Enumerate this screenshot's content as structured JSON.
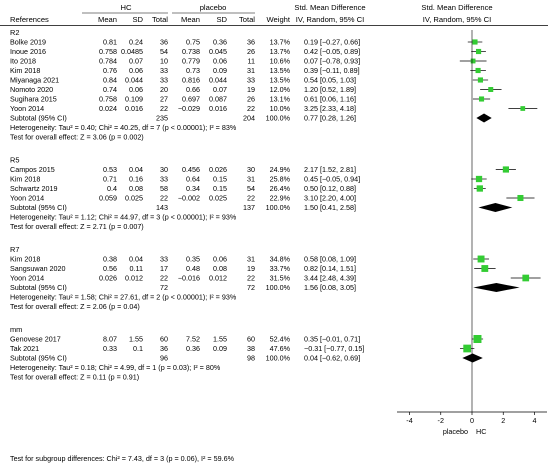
{
  "headers": {
    "group_hc": "HC",
    "group_placebo": "placebo",
    "smd_header": "Std. Mean Difference",
    "smd_header_right": "Std. Mean Difference",
    "references": "References",
    "mean": "Mean",
    "sd": "SD",
    "total": "Total",
    "weight": "Weight",
    "iv_ci": "IV, Random, 95% CI",
    "iv_ci_right": "IV, Random, 95% CI"
  },
  "axis": {
    "ticks": [
      "-4",
      "-2",
      "0",
      "2",
      "4"
    ],
    "tick_values": [
      -4,
      -2,
      0,
      2,
      4
    ],
    "xlim": [
      -4.8,
      4.8
    ],
    "label_left": "placebo",
    "label_right": "HC"
  },
  "colors": {
    "study_marker": "#33cc33",
    "diamond": "#000000",
    "line": "#000000"
  },
  "overall_test": "Test for subgroup differences: Chi² = 7.43, df = 3 (p = 0.06), I² = 59.6%",
  "chart_data": {
    "type": "forest",
    "x_range": [
      -4.8,
      4.8
    ],
    "groups": [
      {
        "name": "R2",
        "studies": [
          {
            "ref": "Bolke 2019",
            "hc_mean": "0.81",
            "hc_sd": "0.24",
            "hc_total": "36",
            "pl_mean": "0.75",
            "pl_sd": "0.36",
            "pl_total": "36",
            "weight": "13.7%",
            "ci": "0.19 [−0.27, 0.66]",
            "est": 0.19,
            "lo": -0.27,
            "hi": 0.66,
            "w": 13.7
          },
          {
            "ref": "Inoue 2016",
            "hc_mean": "0.758",
            "hc_sd": "0.0485",
            "hc_total": "54",
            "pl_mean": "0.738",
            "pl_sd": "0.045",
            "pl_total": "26",
            "weight": "13.7%",
            "ci": "0.42 [−0.05, 0.89]",
            "est": 0.42,
            "lo": -0.05,
            "hi": 0.89,
            "w": 13.7
          },
          {
            "ref": "Ito 2018",
            "hc_mean": "0.784",
            "hc_sd": "0.07",
            "hc_total": "10",
            "pl_mean": "0.779",
            "pl_sd": "0.06",
            "pl_total": "11",
            "weight": "10.6%",
            "ci": "0.07 [−0.78, 0.93]",
            "est": 0.07,
            "lo": -0.78,
            "hi": 0.93,
            "w": 10.6
          },
          {
            "ref": "Kim 2018",
            "hc_mean": "0.76",
            "hc_sd": "0.06",
            "hc_total": "33",
            "pl_mean": "0.73",
            "pl_sd": "0.09",
            "pl_total": "31",
            "weight": "13.5%",
            "ci": "0.39 [−0.11, 0.89]",
            "est": 0.39,
            "lo": -0.11,
            "hi": 0.89,
            "w": 13.5
          },
          {
            "ref": "Miyanaga 2021",
            "hc_mean": "0.84",
            "hc_sd": "0.044",
            "hc_total": "33",
            "pl_mean": "0.816",
            "pl_sd": "0.044",
            "pl_total": "33",
            "weight": "13.5%",
            "ci": "0.54 [0.05, 1.03]",
            "est": 0.54,
            "lo": 0.05,
            "hi": 1.03,
            "w": 13.5
          },
          {
            "ref": "Nomoto 2020",
            "hc_mean": "0.74",
            "hc_sd": "0.06",
            "hc_total": "20",
            "pl_mean": "0.66",
            "pl_sd": "0.07",
            "pl_total": "19",
            "weight": "12.0%",
            "ci": "1.20 [0.52, 1.89]",
            "est": 1.2,
            "lo": 0.52,
            "hi": 1.89,
            "w": 12.0
          },
          {
            "ref": "Sugihara 2015",
            "hc_mean": "0.758",
            "hc_sd": "0.109",
            "hc_total": "27",
            "pl_mean": "0.697",
            "pl_sd": "0.087",
            "pl_total": "26",
            "weight": "13.1%",
            "ci": "0.61 [0.06, 1.16]",
            "est": 0.61,
            "lo": 0.06,
            "hi": 1.16,
            "w": 13.1
          },
          {
            "ref": "Yoon 2014",
            "hc_mean": "0.024",
            "hc_sd": "0.016",
            "hc_total": "22",
            "pl_mean": "−0.029",
            "pl_sd": "0.016",
            "pl_total": "22",
            "weight": "10.0%",
            "ci": "3.25 [2.33, 4.18]",
            "est": 3.25,
            "lo": 2.33,
            "hi": 4.18,
            "w": 10.0
          }
        ],
        "subtotal": {
          "label": "Subtotal (95% CI)",
          "hc_total": "235",
          "pl_total": "204",
          "weight": "100.0%",
          "ci": "0.77 [0.28, 1.26]",
          "est": 0.77,
          "lo": 0.28,
          "hi": 1.26
        },
        "heterogeneity": "Heterogeneity: Tau² = 0.40; Chi² = 40.25, df = 7 (p < 0.00001); I² = 83%",
        "overall_effect": "Test for overall effect: Z = 3.06 (p = 0.002)"
      },
      {
        "name": "R5",
        "studies": [
          {
            "ref": "Campos 2015",
            "hc_mean": "0.53",
            "hc_sd": "0.04",
            "hc_total": "30",
            "pl_mean": "0.456",
            "pl_sd": "0.026",
            "pl_total": "30",
            "weight": "24.9%",
            "ci": "2.17 [1.52, 2.81]",
            "est": 2.17,
            "lo": 1.52,
            "hi": 2.81,
            "w": 24.9
          },
          {
            "ref": "Kim 2018",
            "hc_mean": "0.71",
            "hc_sd": "0.16",
            "hc_total": "33",
            "pl_mean": "0.64",
            "pl_sd": "0.15",
            "pl_total": "31",
            "weight": "25.8%",
            "ci": "0.45 [−0.05, 0.94]",
            "est": 0.45,
            "lo": -0.05,
            "hi": 0.94,
            "w": 25.8
          },
          {
            "ref": "Schwartz 2019",
            "hc_mean": "0.4",
            "hc_sd": "0.08",
            "hc_total": "58",
            "pl_mean": "0.34",
            "pl_sd": "0.15",
            "pl_total": "54",
            "weight": "26.4%",
            "ci": "0.50 [0.12, 0.88]",
            "est": 0.5,
            "lo": 0.12,
            "hi": 0.88,
            "w": 26.4
          },
          {
            "ref": "Yoon 2014",
            "hc_mean": "0.059",
            "hc_sd": "0.025",
            "hc_total": "22",
            "pl_mean": "−0.002",
            "pl_sd": "0.025",
            "pl_total": "22",
            "weight": "22.9%",
            "ci": "3.10 [2.20, 4.00]",
            "est": 3.1,
            "lo": 2.2,
            "hi": 4.0,
            "w": 22.9
          }
        ],
        "subtotal": {
          "label": "Subtotal (95% CI)",
          "hc_total": "143",
          "pl_total": "137",
          "weight": "100.0%",
          "ci": "1.50 [0.41, 2.58]",
          "est": 1.5,
          "lo": 0.41,
          "hi": 2.58
        },
        "heterogeneity": "Heterogeneity: Tau² = 1.12; Chi² = 44.97, df = 3 (p < 0.00001); I² = 93%",
        "overall_effect": "Test for overall effect: Z = 2.71 (p = 0.007)"
      },
      {
        "name": "R7",
        "studies": [
          {
            "ref": "Kim 2018",
            "hc_mean": "0.38",
            "hc_sd": "0.04",
            "hc_total": "33",
            "pl_mean": "0.35",
            "pl_sd": "0.06",
            "pl_total": "31",
            "weight": "34.8%",
            "ci": "0.58 [0.08, 1.09]",
            "est": 0.58,
            "lo": 0.08,
            "hi": 1.09,
            "w": 34.8
          },
          {
            "ref": "Sangsuwan 2020",
            "hc_mean": "0.56",
            "hc_sd": "0.11",
            "hc_total": "17",
            "pl_mean": "0.48",
            "pl_sd": "0.08",
            "pl_total": "19",
            "weight": "33.7%",
            "ci": "0.82 [0.14, 1.51]",
            "est": 0.82,
            "lo": 0.14,
            "hi": 1.51,
            "w": 33.7
          },
          {
            "ref": "Yoon 2014",
            "hc_mean": "0.026",
            "hc_sd": "0.012",
            "hc_total": "22",
            "pl_mean": "−0.016",
            "pl_sd": "0.012",
            "pl_total": "22",
            "weight": "31.5%",
            "ci": "3.44 [2.48, 4.39]",
            "est": 3.44,
            "lo": 2.48,
            "hi": 4.39,
            "w": 31.5
          }
        ],
        "subtotal": {
          "label": "Subtotal (95% CI)",
          "hc_total": "72",
          "pl_total": "72",
          "weight": "100.0%",
          "ci": "1.56 [0.08, 3.05]",
          "est": 1.56,
          "lo": 0.08,
          "hi": 3.05
        },
        "heterogeneity": "Heterogeneity: Tau² = 1.58; Chi² = 27.61, df = 2 (p < 0.00001); I² = 93%",
        "overall_effect": "Test for overall effect: Z = 2.06 (p = 0.04)"
      },
      {
        "name": "mm",
        "studies": [
          {
            "ref": "Genovese 2017",
            "hc_mean": "8.07",
            "hc_sd": "1.55",
            "hc_total": "60",
            "pl_mean": "7.52",
            "pl_sd": "1.55",
            "pl_total": "60",
            "weight": "52.4%",
            "ci": "0.35 [−0.01, 0.71]",
            "est": 0.35,
            "lo": -0.01,
            "hi": 0.71,
            "w": 52.4
          },
          {
            "ref": "Tak 2021",
            "hc_mean": "0.33",
            "hc_sd": "0.1",
            "hc_total": "36",
            "pl_mean": "0.36",
            "pl_sd": "0.09",
            "pl_total": "38",
            "weight": "47.6%",
            "ci": "−0.31 [−0.77, 0.15]",
            "est": -0.31,
            "lo": -0.77,
            "hi": 0.15,
            "w": 47.6
          }
        ],
        "subtotal": {
          "label": "Subtotal (95% CI)",
          "hc_total": "96",
          "pl_total": "98",
          "weight": "100.0%",
          "ci": "0.04 [−0.62, 0.69]",
          "est": 0.04,
          "lo": -0.62,
          "hi": 0.69
        },
        "heterogeneity": "Heterogeneity: Tau² = 0.18; Chi² = 4.99, df = 1 (p = 0.03); I² = 80%",
        "overall_effect": "Test for overall effect: Z = 0.11 (p = 0.91)"
      }
    ]
  }
}
